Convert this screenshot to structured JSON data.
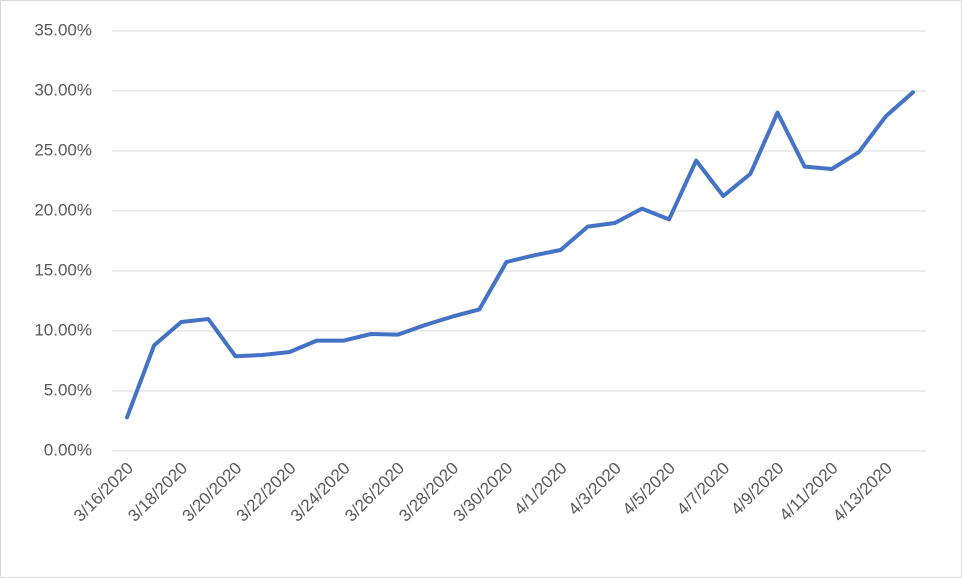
{
  "chart_data": {
    "type": "line",
    "categories": [
      "3/16/2020",
      null,
      "3/18/2020",
      null,
      "3/20/2020",
      null,
      "3/22/2020",
      null,
      "3/24/2020",
      null,
      "3/26/2020",
      null,
      "3/28/2020",
      null,
      "3/30/2020",
      null,
      "4/1/2020",
      null,
      "4/3/2020",
      null,
      "4/5/2020",
      null,
      "4/7/2020",
      null,
      "4/9/2020",
      null,
      "4/11/2020",
      null,
      "4/13/2020",
      null
    ],
    "series": [
      {
        "color": "#4472c4",
        "values": [
          2.8,
          8.8,
          10.75,
          11.0,
          7.9,
          8.0,
          8.25,
          9.2,
          9.2,
          9.75,
          9.7,
          10.5,
          11.2,
          11.8,
          15.75,
          16.3,
          16.75,
          18.7,
          19.0,
          20.2,
          19.3,
          24.2,
          21.25,
          23.1,
          28.2,
          23.7,
          23.5,
          24.9,
          27.9,
          29.9
        ]
      }
    ],
    "ylim": [
      0,
      35
    ],
    "yticks": [
      {
        "value": 0,
        "label": "0.00%"
      },
      {
        "value": 5,
        "label": "5.00%"
      },
      {
        "value": 10,
        "label": "10.00%"
      },
      {
        "value": 15,
        "label": "15.00%"
      },
      {
        "value": 20,
        "label": "20.00%"
      },
      {
        "value": 25,
        "label": "25.00%"
      },
      {
        "value": 30,
        "label": "30.00%"
      },
      {
        "value": 35,
        "label": "35.00%"
      }
    ],
    "grid": true
  }
}
